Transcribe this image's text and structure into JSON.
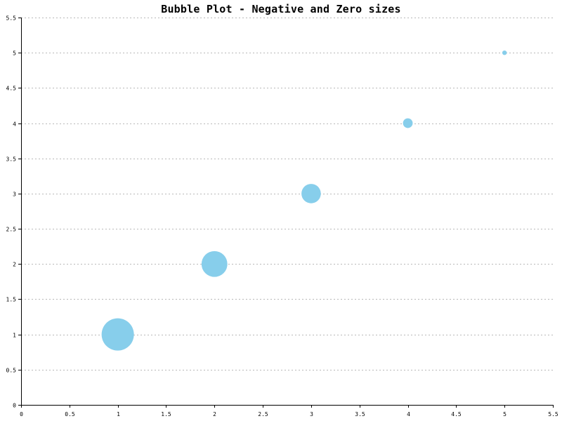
{
  "chart_data": {
    "type": "scatter",
    "subtype": "bubble",
    "title": "Bubble Plot - Negative and Zero sizes",
    "xlabel": "",
    "ylabel": "",
    "xlim": [
      0,
      5.5
    ],
    "ylim": [
      0,
      5.5
    ],
    "x_ticks": [
      "0",
      "0.5",
      "1",
      "1.5",
      "2",
      "2.5",
      "3",
      "3.5",
      "4",
      "4.5",
      "5",
      "5.5"
    ],
    "y_ticks": [
      "0",
      "0.5",
      "1",
      "1.5",
      "2",
      "2.5",
      "3",
      "3.5",
      "4",
      "4.5",
      "5",
      "5.5"
    ],
    "grid": "horizontal-dotted",
    "color": "#87ceeb",
    "points": [
      {
        "x": 1,
        "y": 1,
        "size": 5
      },
      {
        "x": 2,
        "y": 2,
        "size": 4
      },
      {
        "x": 3,
        "y": 3,
        "size": 3
      },
      {
        "x": 4,
        "y": 4,
        "size": 1.5
      },
      {
        "x": 5,
        "y": 5,
        "size": 0.7
      }
    ]
  }
}
